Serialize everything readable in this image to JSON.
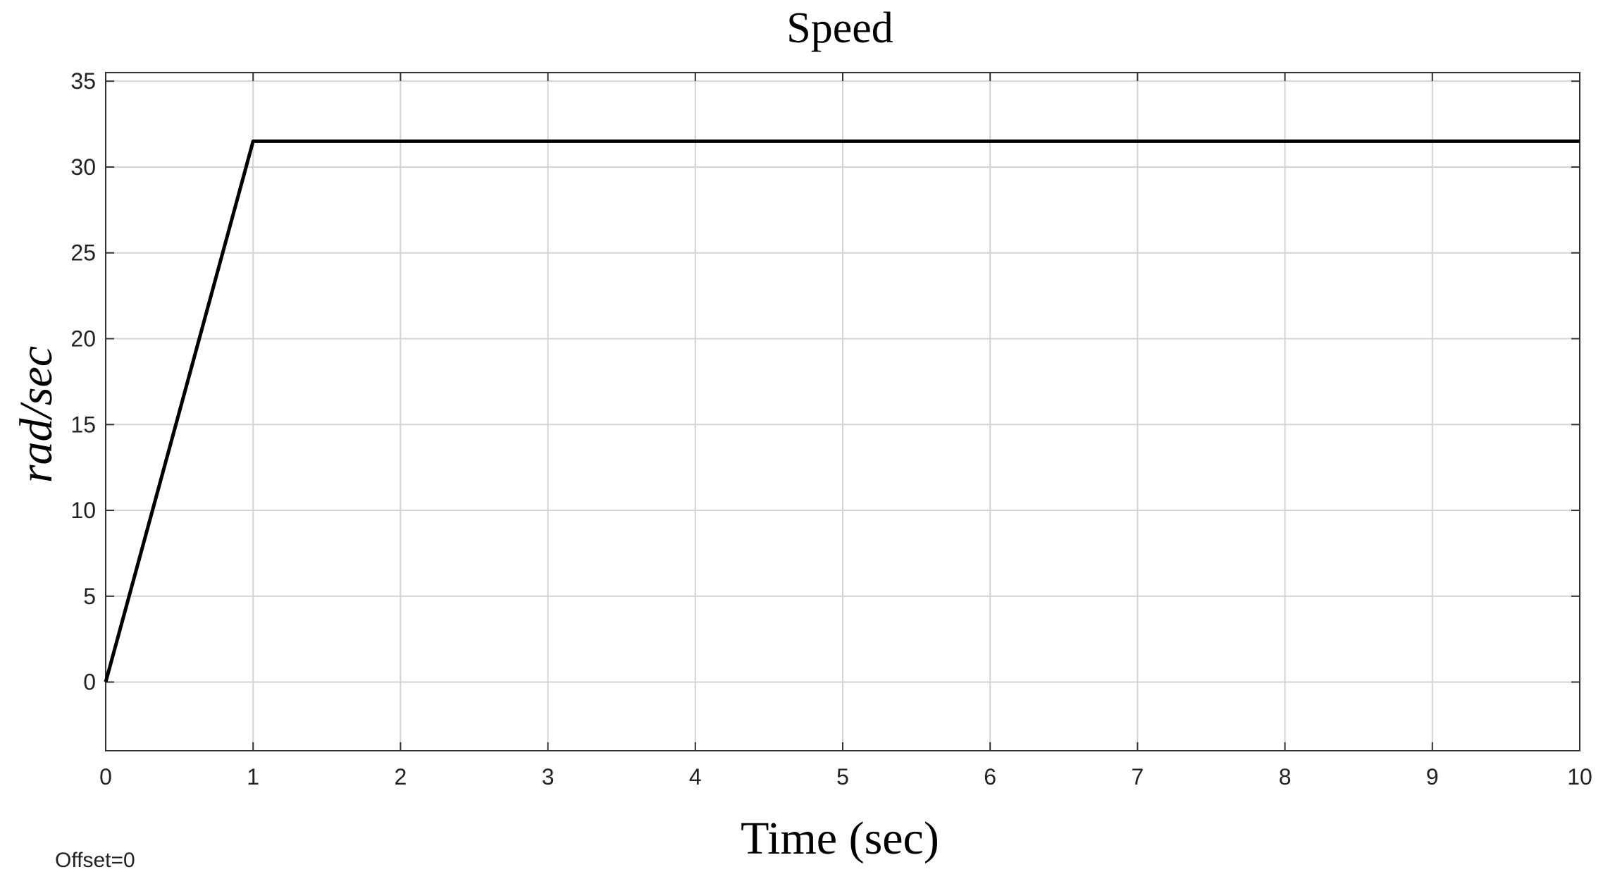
{
  "chart_data": {
    "type": "line",
    "title": "Speed",
    "xlabel": "Time (sec)",
    "ylabel": "rad/sec",
    "xlim": [
      0,
      10
    ],
    "ylim": [
      -4,
      35.5
    ],
    "x_ticks": [
      0,
      1,
      2,
      3,
      4,
      5,
      6,
      7,
      8,
      9,
      10
    ],
    "y_ticks": [
      0,
      5,
      10,
      15,
      20,
      25,
      30,
      35
    ],
    "grid": true,
    "legend": "none",
    "series": [
      {
        "color": "#000000",
        "x": [
          0,
          1,
          2,
          3,
          4,
          5,
          6,
          7,
          8,
          9,
          10
        ],
        "y": [
          0,
          31.5,
          31.5,
          31.5,
          31.5,
          31.5,
          31.5,
          31.5,
          31.5,
          31.5,
          31.5
        ]
      }
    ],
    "annotation": "Offset=0"
  }
}
